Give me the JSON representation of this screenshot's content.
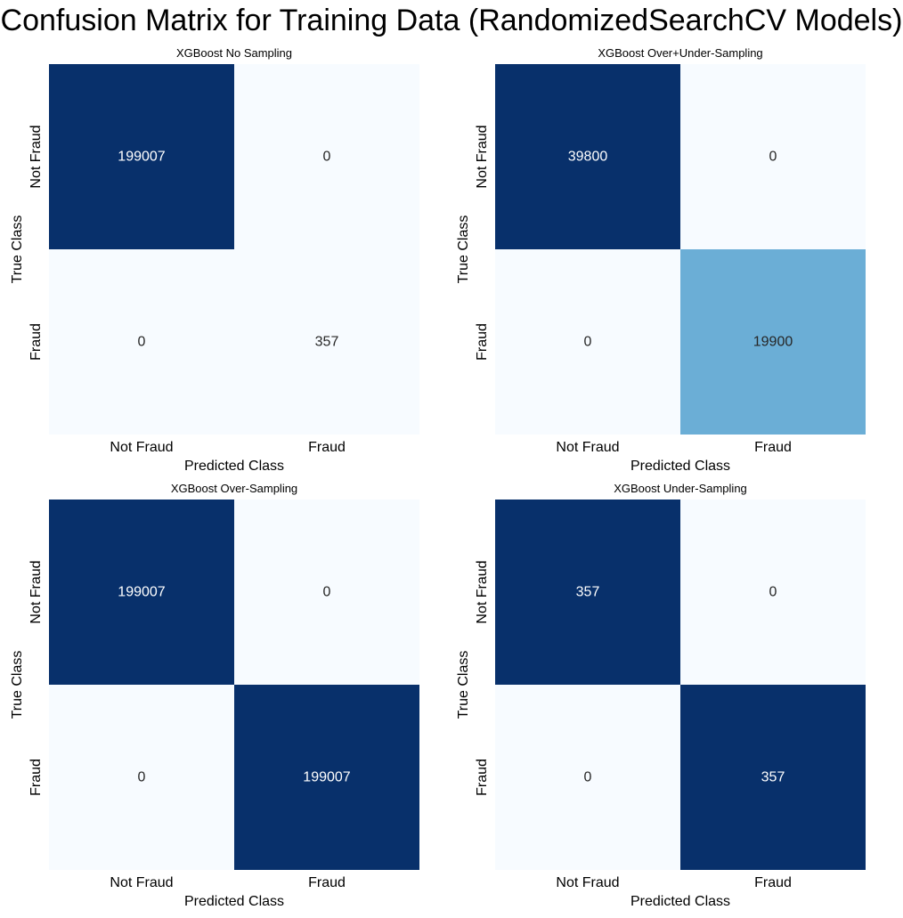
{
  "suptitle": "Confusion Matrix for Training Data (RandomizedSearchCV Models)",
  "chart_data": [
    {
      "type": "heatmap",
      "title": "XGBoost No Sampling",
      "xlabel": "Predicted Class",
      "ylabel": "True Class",
      "x_categories": [
        "Not Fraud",
        "Fraud"
      ],
      "y_categories": [
        "Not Fraud",
        "Fraud"
      ],
      "values": [
        [
          199007,
          0
        ],
        [
          0,
          357
        ]
      ],
      "colormap": "Blues"
    },
    {
      "type": "heatmap",
      "title": "XGBoost Over+Under-Sampling",
      "xlabel": "Predicted Class",
      "ylabel": "True Class",
      "x_categories": [
        "Not Fraud",
        "Fraud"
      ],
      "y_categories": [
        "Not Fraud",
        "Fraud"
      ],
      "values": [
        [
          39800,
          0
        ],
        [
          0,
          19900
        ]
      ],
      "colormap": "Blues"
    },
    {
      "type": "heatmap",
      "title": "XGBoost Over-Sampling",
      "xlabel": "Predicted Class",
      "ylabel": "True Class",
      "x_categories": [
        "Not Fraud",
        "Fraud"
      ],
      "y_categories": [
        "Not Fraud",
        "Fraud"
      ],
      "values": [
        [
          199007,
          0
        ],
        [
          0,
          199007
        ]
      ],
      "colormap": "Blues"
    },
    {
      "type": "heatmap",
      "title": "XGBoost Under-Sampling",
      "xlabel": "Predicted Class",
      "ylabel": "True Class",
      "x_categories": [
        "Not Fraud",
        "Fraud"
      ],
      "y_categories": [
        "Not Fraud",
        "Fraud"
      ],
      "values": [
        [
          357,
          0
        ],
        [
          0,
          357
        ]
      ],
      "colormap": "Blues"
    }
  ]
}
